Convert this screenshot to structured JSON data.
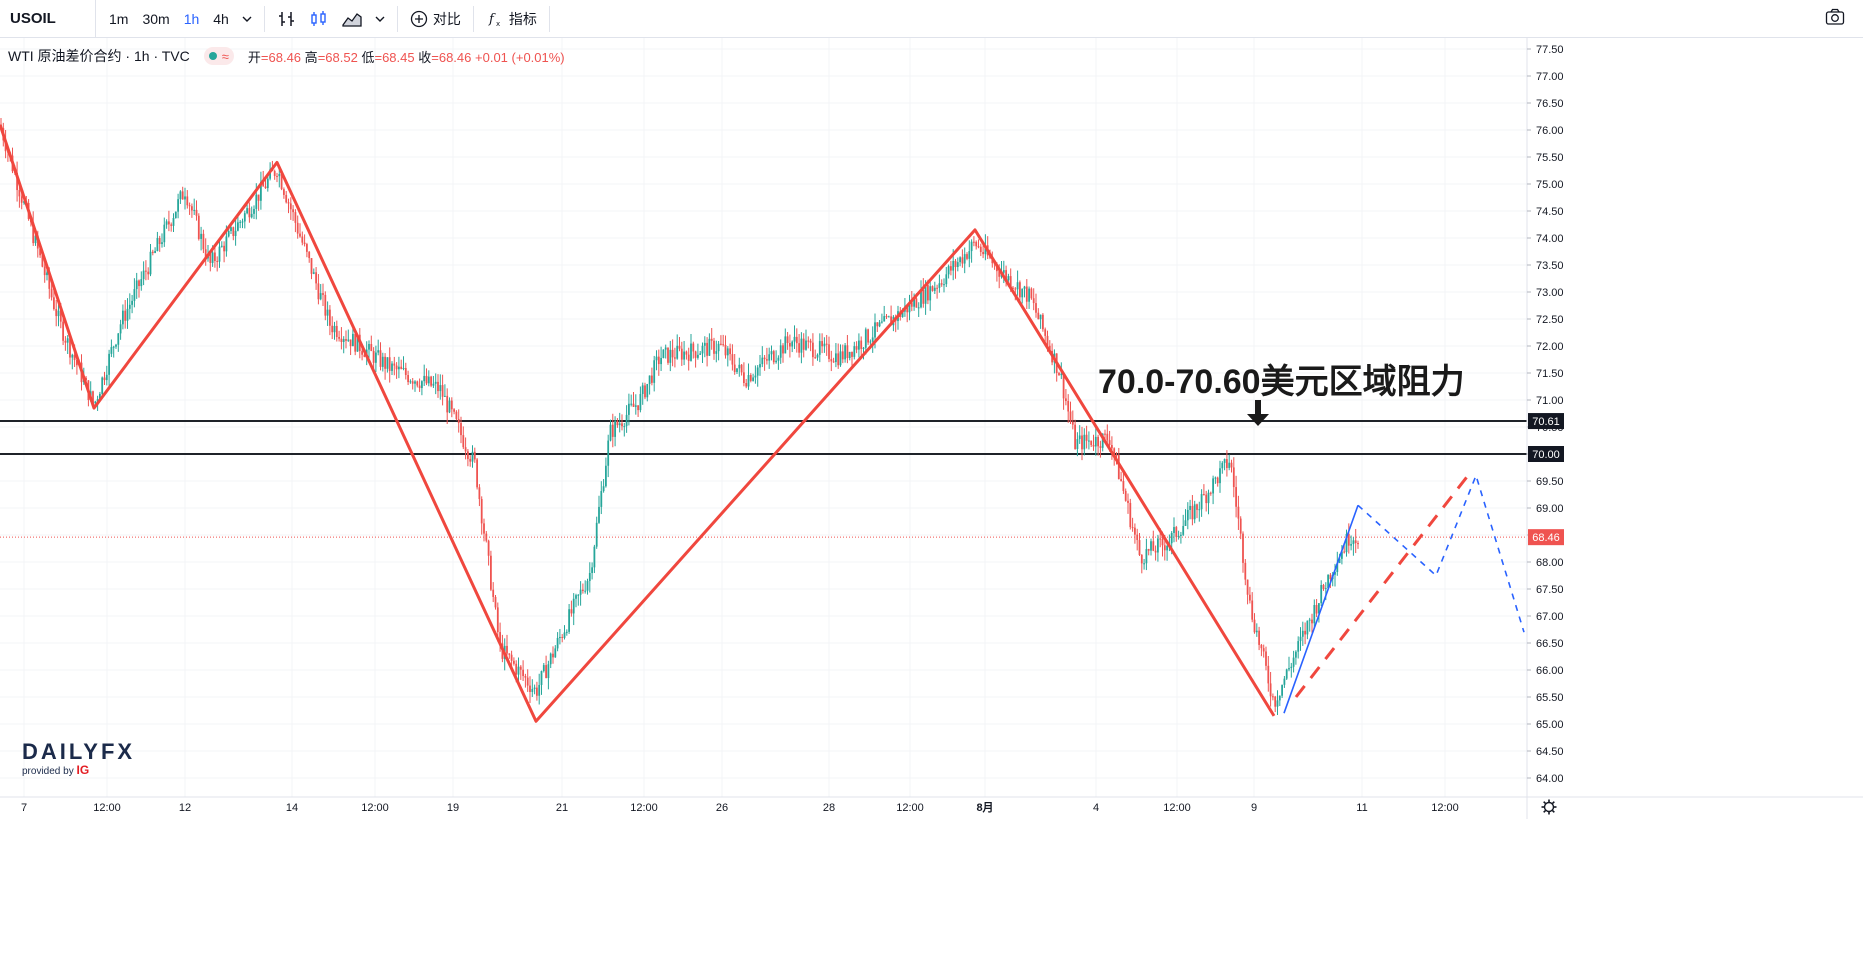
{
  "toolbar": {
    "symbol": "USOIL",
    "timeframes": [
      "1m",
      "30m",
      "1h",
      "4h"
    ],
    "active_timeframe": "1h",
    "compare_label": "对比",
    "indicators_label": "指标"
  },
  "legend": {
    "title": "WTI 原油差价合约 · 1h · TVC",
    "open_label": "开",
    "open": "68.46",
    "high_label": "高",
    "high": "68.52",
    "low_label": "低",
    "low": "68.45",
    "close_label": "收",
    "close": "68.46",
    "change": "+0.01 (+0.01%)"
  },
  "logo": {
    "brand": "DAILYFX",
    "provided": "provided by",
    "ig": "IG"
  },
  "annotation": "70.0-70.60美元区域阻力",
  "colors": {
    "up": "#26a69a",
    "down": "#ef5350",
    "zigzag": "#f0473e",
    "forecast": "#2962ff",
    "level": "#1f2329"
  },
  "chart_data": {
    "type": "candlestick",
    "y_ticks": [
      "77.50",
      "77.00",
      "76.50",
      "76.00",
      "75.50",
      "75.00",
      "74.50",
      "74.00",
      "73.50",
      "73.00",
      "72.50",
      "72.00",
      "71.50",
      "71.00",
      "70.50",
      "70.00",
      "69.50",
      "69.00",
      "68.50",
      "68.00",
      "67.50",
      "67.00",
      "66.50",
      "66.00",
      "65.50",
      "65.00",
      "64.50",
      "64.00"
    ],
    "x_ticks": [
      "7",
      "12:00",
      "12",
      "14",
      "12:00",
      "19",
      "21",
      "12:00",
      "26",
      "28",
      "12:00",
      "8月",
      "4",
      "12:00",
      "9",
      "11",
      "12:00"
    ],
    "price_labels": [
      {
        "value": "70.61",
        "style": "level"
      },
      {
        "value": "70.00",
        "style": "level"
      },
      {
        "value": "68.46",
        "style": "last"
      }
    ],
    "ohlc_zigzag": [
      [
        0,
        76.1
      ],
      [
        94,
        70.85
      ],
      [
        277,
        75.4
      ],
      [
        536,
        65.05
      ],
      [
        975,
        74.15
      ],
      [
        1274,
        65.15
      ]
    ],
    "forecast_solid": [
      [
        1284,
        65.2
      ],
      [
        1358,
        69.05
      ]
    ],
    "forecast_dashed": [
      [
        1358,
        69.05
      ],
      [
        1436,
        67.75
      ],
      [
        1476,
        69.6
      ],
      [
        1524,
        66.7
      ]
    ],
    "red_dashed_trend": [
      [
        1296,
        65.5
      ],
      [
        1470,
        69.65
      ]
    ],
    "red_dashed_lower": [
      [
        1296,
        65.6
      ],
      [
        1370,
        67.2
      ]
    ],
    "anchors": [
      [
        0,
        76.1
      ],
      [
        60,
        72.4
      ],
      [
        94,
        70.9
      ],
      [
        120,
        72.4
      ],
      [
        185,
        74.9
      ],
      [
        210,
        73.5
      ],
      [
        277,
        75.3
      ],
      [
        330,
        72.4
      ],
      [
        390,
        71.6
      ],
      [
        440,
        71.2
      ],
      [
        475,
        69.8
      ],
      [
        500,
        66.4
      ],
      [
        536,
        65.6
      ],
      [
        560,
        66.6
      ],
      [
        590,
        67.8
      ],
      [
        610,
        70.4
      ],
      [
        640,
        71.0
      ],
      [
        660,
        71.8
      ],
      [
        720,
        72.0
      ],
      [
        745,
        71.4
      ],
      [
        790,
        72.1
      ],
      [
        840,
        71.8
      ],
      [
        900,
        72.6
      ],
      [
        940,
        73.2
      ],
      [
        975,
        73.9
      ],
      [
        1000,
        73.4
      ],
      [
        1030,
        72.9
      ],
      [
        1060,
        71.5
      ],
      [
        1075,
        70.2
      ],
      [
        1110,
        70.3
      ],
      [
        1140,
        68.1
      ],
      [
        1170,
        68.4
      ],
      [
        1200,
        69.1
      ],
      [
        1230,
        69.9
      ],
      [
        1250,
        67.2
      ],
      [
        1274,
        65.4
      ],
      [
        1300,
        66.5
      ],
      [
        1330,
        67.8
      ],
      [
        1350,
        68.5
      ],
      [
        1358,
        68.46
      ]
    ]
  }
}
